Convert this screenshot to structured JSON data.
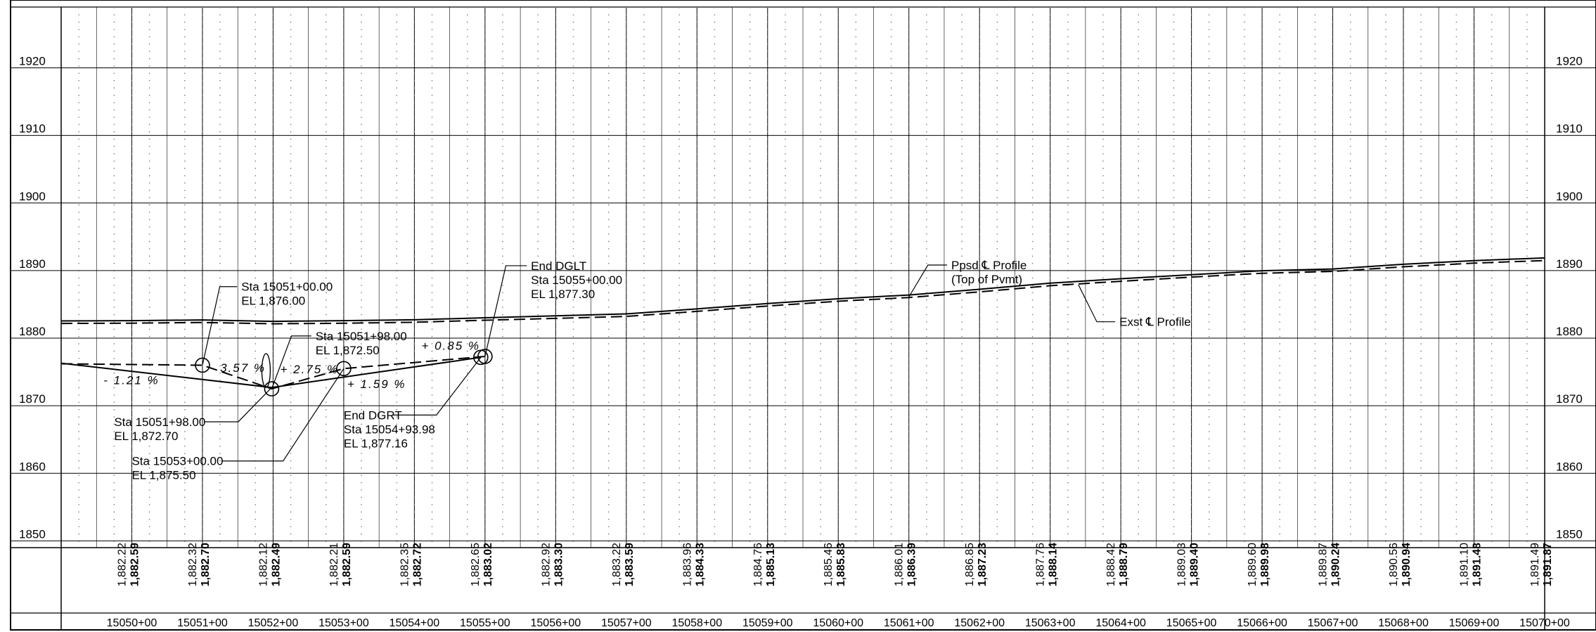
{
  "chart_data": {
    "type": "line",
    "title": "",
    "xlabel": "",
    "ylabel": "",
    "xlim": [
      15049.0,
      15070.0
    ],
    "ylim": [
      1849.0,
      1929.0
    ],
    "y_ticks": [
      "1850",
      "1860",
      "1870",
      "1880",
      "1890",
      "1900",
      "1910",
      "1920"
    ],
    "x_tick_labels": [
      "15050+00",
      "15051+00",
      "15052+00",
      "15053+00",
      "15054+00",
      "15055+00",
      "15056+00",
      "15057+00",
      "15058+00",
      "15059+00",
      "15060+00",
      "15061+00",
      "15062+00",
      "15063+00",
      "15064+00",
      "15065+00",
      "15066+00",
      "15067+00",
      "15068+00",
      "15069+00",
      "15070+00"
    ],
    "elevation_columns": [
      {
        "existing": "1,882.22",
        "proposed": "1,882.59"
      },
      {
        "existing": "1,882.32",
        "proposed": "1,882.70"
      },
      {
        "existing": "1,882.12",
        "proposed": "1,882.49"
      },
      {
        "existing": "1,882.21",
        "proposed": "1,882.59"
      },
      {
        "existing": "1,882.35",
        "proposed": "1,882.72"
      },
      {
        "existing": "1,882.65",
        "proposed": "1,883.02"
      },
      {
        "existing": "1,882.92",
        "proposed": "1,883.30"
      },
      {
        "existing": "1,883.22",
        "proposed": "1,883.59"
      },
      {
        "existing": "1,883.96",
        "proposed": "1,884.33"
      },
      {
        "existing": "1,884.76",
        "proposed": "1,885.13"
      },
      {
        "existing": "1,885.46",
        "proposed": "1,885.83"
      },
      {
        "existing": "1,886.01",
        "proposed": "1,886.39"
      },
      {
        "existing": "1,886.85",
        "proposed": "1,887.23"
      },
      {
        "existing": "1,887.76",
        "proposed": "1,888.14"
      },
      {
        "existing": "1,888.42",
        "proposed": "1,888.79"
      },
      {
        "existing": "1,889.03",
        "proposed": "1,889.40"
      },
      {
        "existing": "1,889.60",
        "proposed": "1,889.98"
      },
      {
        "existing": "1,889.87",
        "proposed": "1,890.24"
      },
      {
        "existing": "1,890.56",
        "proposed": "1,890.94"
      },
      {
        "existing": "1,891.10",
        "proposed": "1,891.48"
      },
      {
        "existing": "1,891.49",
        "proposed": "1,891.87"
      }
    ],
    "series": [
      {
        "x": [
          15049.0,
          15050.0,
          15051.0,
          15052.0,
          15053.0,
          15054.0,
          15055.0,
          15056.0,
          15057.0,
          15058.0,
          15059.0,
          15060.0,
          15061.0,
          15062.0,
          15063.0,
          15064.0,
          15065.0,
          15066.0,
          15067.0,
          15068.0,
          15069.0,
          15070.0
        ],
        "y": [
          1882.55,
          1882.59,
          1882.7,
          1882.49,
          1882.59,
          1882.72,
          1883.02,
          1883.3,
          1883.59,
          1884.33,
          1885.13,
          1885.83,
          1886.39,
          1887.23,
          1888.14,
          1888.79,
          1889.4,
          1889.98,
          1890.24,
          1890.94,
          1891.48,
          1891.87
        ],
        "style": "solid"
      },
      {
        "x": [
          15049.0,
          15050.0,
          15051.0,
          15052.0,
          15053.0,
          15054.0,
          15055.0,
          15056.0,
          15057.0,
          15058.0,
          15059.0,
          15060.0,
          15061.0,
          15062.0,
          15063.0,
          15064.0,
          15065.0,
          15066.0,
          15067.0,
          15068.0,
          15069.0,
          15070.0
        ],
        "y": [
          1882.18,
          1882.22,
          1882.32,
          1882.12,
          1882.21,
          1882.35,
          1882.65,
          1882.92,
          1883.22,
          1883.96,
          1884.76,
          1885.46,
          1886.01,
          1886.85,
          1887.76,
          1888.42,
          1889.03,
          1889.6,
          1889.87,
          1890.56,
          1891.1,
          1891.49
        ],
        "style": "dashed"
      },
      {
        "x": [
          15049.0,
          15051.98,
          15054.9398
        ],
        "y": [
          1876.3,
          1872.7,
          1877.16
        ],
        "style": "solid"
      },
      {
        "x": [
          15049.0,
          15051.0,
          15051.98,
          15053.0,
          15055.0
        ],
        "y": [
          1876.2,
          1876.0,
          1872.5,
          1875.5,
          1877.3
        ],
        "style": "dashed"
      }
    ],
    "points": [
      {
        "x": 15051.0,
        "y": 1876.0,
        "shape": "circle"
      },
      {
        "x": 15051.98,
        "y": 1872.5,
        "shape": "circle"
      },
      {
        "x": 15053.0,
        "y": 1875.5,
        "shape": "circle"
      },
      {
        "x": 15055.0,
        "y": 1877.3,
        "shape": "circle"
      },
      {
        "x": 15054.94,
        "y": 1877.16,
        "shape": "circle"
      }
    ],
    "grade_labels": [
      {
        "text": "- 1.21 %",
        "x": 15049.6,
        "y": 1873.2
      },
      {
        "text": "3.57 %",
        "x": 15051.25,
        "y": 1875.0
      },
      {
        "text": "+ 2.75 %",
        "x": 15052.1,
        "y": 1874.8
      },
      {
        "text": "+ 1.59 %",
        "x": 15053.05,
        "y": 1872.6
      },
      {
        "text": "+ 0.85 %",
        "x": 15054.1,
        "y": 1878.3
      }
    ],
    "annotations": [
      {
        "lines": [
          "Sta 15051+00.00",
          "EL 1,876.00"
        ],
        "text_x": 15051.55,
        "text_y": 1887.0,
        "target_x": 15051.0,
        "target_y": 1876.0
      },
      {
        "lines": [
          "Sta 15051+98.00",
          "EL 1,872.50"
        ],
        "text_x": 15052.6,
        "text_y": 1879.7,
        "target_x": 15051.98,
        "target_y": 1872.5
      },
      {
        "lines": [
          "End DGLT",
          "Sta 15055+00.00",
          "EL 1,877.30"
        ],
        "text_x": 15055.65,
        "text_y": 1890.1,
        "target_x": 15055.0,
        "target_y": 1877.3
      },
      {
        "lines": [
          "Ppsd ℄ Profile",
          "(Top of Pvmt)"
        ],
        "text_x": 15061.6,
        "text_y": 1890.2,
        "target_x": 15061.0,
        "target_y": 1886.1
      },
      {
        "lines": [
          "Exst ℄ Profile"
        ],
        "text_x": 15063.98,
        "text_y": 1881.8,
        "target_x": 15063.4,
        "target_y": 1887.9
      },
      {
        "lines": [
          "Sta 15051+98.00",
          "EL 1,872.70"
        ],
        "text_x": 15049.75,
        "text_y": 1867.0,
        "target_x": 15051.98,
        "target_y": 1872.7
      },
      {
        "lines": [
          "End DGRT",
          "Sta 15054+93.98",
          "EL 1,877.16"
        ],
        "text_x": 15053.0,
        "text_y": 1868.0,
        "target_x": 15054.94,
        "target_y": 1877.16
      },
      {
        "lines": [
          "Sta 15053+00.00",
          "EL 1,875.50"
        ],
        "text_x": 15050.0,
        "text_y": 1861.2,
        "target_x": 15053.0,
        "target_y": 1875.5
      }
    ]
  }
}
